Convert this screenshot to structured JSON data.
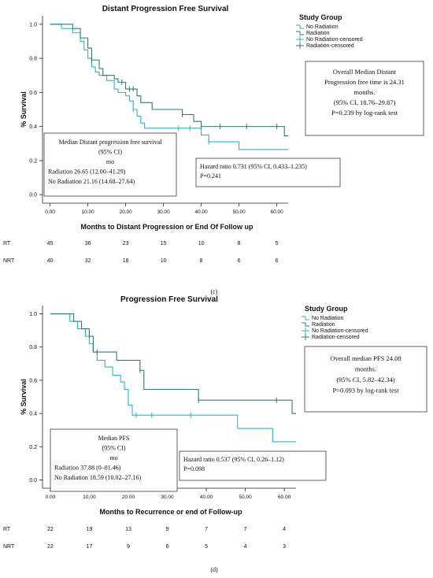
{
  "chart_data": [
    {
      "type": "line",
      "title": "Distant Progression Free Survival",
      "xlabel": "Months to Distant Progression or End Of  Follow up",
      "ylabel": "% Survival",
      "xlim": [
        -2,
        63
      ],
      "ylim": [
        -0.05,
        1.05
      ],
      "x_ticks": [
        "0.00",
        "10.00",
        "20.00",
        "30.00",
        "40.00",
        "50.00",
        "60.00"
      ],
      "y_ticks": [
        "0.0",
        "0.2",
        "0.4",
        "0.6",
        "0.8",
        "1.0"
      ],
      "legend_title": "Study Group",
      "legend_position": "top-right",
      "legend": [
        "No Radiation",
        "Radiation",
        "No Radiation-censored",
        "Radiation-censored"
      ],
      "series": [
        {
          "name": "No Radiation",
          "color": "#29b5d6",
          "x": [
            0,
            3,
            6,
            8,
            9,
            10,
            11,
            12,
            13,
            15,
            17,
            18,
            20,
            21,
            22,
            23,
            24,
            25,
            40,
            42,
            50,
            63
          ],
          "y": [
            1.0,
            0.975,
            0.95,
            0.9,
            0.85,
            0.8,
            0.75,
            0.72,
            0.7,
            0.67,
            0.62,
            0.6,
            0.58,
            0.55,
            0.5,
            0.46,
            0.42,
            0.39,
            0.35,
            0.31,
            0.265,
            0.265
          ],
          "censored_x": [
            22,
            34,
            37,
            42
          ]
        },
        {
          "name": "Radiation",
          "color": "#2e7d6c",
          "x": [
            0,
            6,
            8,
            10,
            11,
            13,
            14,
            17,
            18,
            20,
            21,
            23,
            24,
            27,
            35,
            38,
            40,
            62,
            63
          ],
          "y": [
            1.0,
            0.975,
            0.92,
            0.86,
            0.79,
            0.74,
            0.7,
            0.68,
            0.66,
            0.62,
            0.62,
            0.58,
            0.54,
            0.5,
            0.47,
            0.43,
            0.4,
            0.345,
            0.345
          ],
          "censored_x": [
            11,
            19,
            21,
            22,
            35,
            40,
            45,
            52,
            60
          ]
        }
      ],
      "risk_table": {
        "x": [
          0,
          10,
          20,
          30,
          40,
          50,
          60
        ],
        "rows": [
          {
            "label": "RT",
            "values": [
              "45",
              "36",
              "23",
              "15",
              "10",
              "8",
              "5"
            ]
          },
          {
            "label": "NRT",
            "values": [
              "40",
              "32",
              "18",
              "10",
              "8",
              "6",
              "6"
            ]
          }
        ]
      },
      "annotations": {
        "overall": [
          "Overall Median Distant",
          "Progression free time is 24.31",
          "months.",
          "(95% CI, 18.76–29.87)",
          "P=0.239 by log-rank test"
        ],
        "median": [
          "Median Distant progression free survival",
          "(95% CI)",
          "mo",
          "Radiation 26.65 (12.00–41.29)",
          "No Radiation 21.16 (14.68–27.64)"
        ],
        "hazard": [
          "Hazard ratio 0.731 (95% CI, 0.433–1.235)",
          "P=0.241"
        ]
      },
      "panel_label": "(c)"
    },
    {
      "type": "line",
      "title": "Progression Free Survival",
      "xlabel": "Months to Recurrence or end of Follow-up",
      "ylabel": "% Survival",
      "xlim": [
        -2,
        63
      ],
      "ylim": [
        -0.05,
        1.05
      ],
      "x_ticks": [
        "0.00",
        "10.00",
        "20.00",
        "30.00",
        "40.00",
        "50.00",
        "60.00"
      ],
      "y_ticks": [
        "0.0",
        "0.2",
        "0.4",
        "0.6",
        "0.8",
        "1.0"
      ],
      "legend_title": "Study Group",
      "legend_position": "top-right",
      "legend": [
        "No Radiation",
        "Radiation",
        "No Radiation-censored",
        "Radiation-censored"
      ],
      "series": [
        {
          "name": "No Radiation",
          "color": "#29b5d6",
          "x": [
            0,
            5,
            7,
            9,
            10,
            11,
            12,
            14,
            16,
            18,
            19,
            20,
            21,
            48,
            57,
            63
          ],
          "y": [
            1.0,
            0.955,
            0.91,
            0.865,
            0.82,
            0.77,
            0.72,
            0.68,
            0.63,
            0.59,
            0.545,
            0.45,
            0.39,
            0.31,
            0.23,
            0.23
          ],
          "censored_x": [
            22,
            26,
            36
          ]
        },
        {
          "name": "Radiation",
          "color": "#2e7d6c",
          "x": [
            0,
            6,
            8,
            10,
            11,
            17,
            23,
            24,
            38,
            62,
            63
          ],
          "y": [
            1.0,
            0.955,
            0.91,
            0.865,
            0.77,
            0.72,
            0.66,
            0.545,
            0.48,
            0.4,
            0.4
          ],
          "censored_x": [
            10,
            12,
            23,
            38,
            58
          ]
        }
      ],
      "risk_table": {
        "x": [
          0,
          10,
          20,
          30,
          40,
          50,
          60
        ],
        "rows": [
          {
            "label": "RT",
            "values": [
              "22",
              "19",
              "13",
              "9",
              "7",
              "7",
              "4"
            ]
          },
          {
            "label": "NRT",
            "values": [
              "22",
              "17",
              "9",
              "6",
              "5",
              "4",
              "3"
            ]
          }
        ]
      },
      "annotations": {
        "overall": [
          "Overall median PFS 24.08",
          "months.",
          "(95% CI, 5.82–42.34)",
          "P=0.093 by log-rank test"
        ],
        "median": [
          "Median PFS",
          "(95% CI)",
          "mo",
          "Radiation 37.88 (0–81.46)",
          "No Radiation 18.59 (10.02–27.16)"
        ],
        "hazard": [
          "Hazard ratio 0.537 (95% CI, 0.26–1.12)",
          "P=0.098"
        ]
      },
      "panel_label": "(d)"
    }
  ]
}
